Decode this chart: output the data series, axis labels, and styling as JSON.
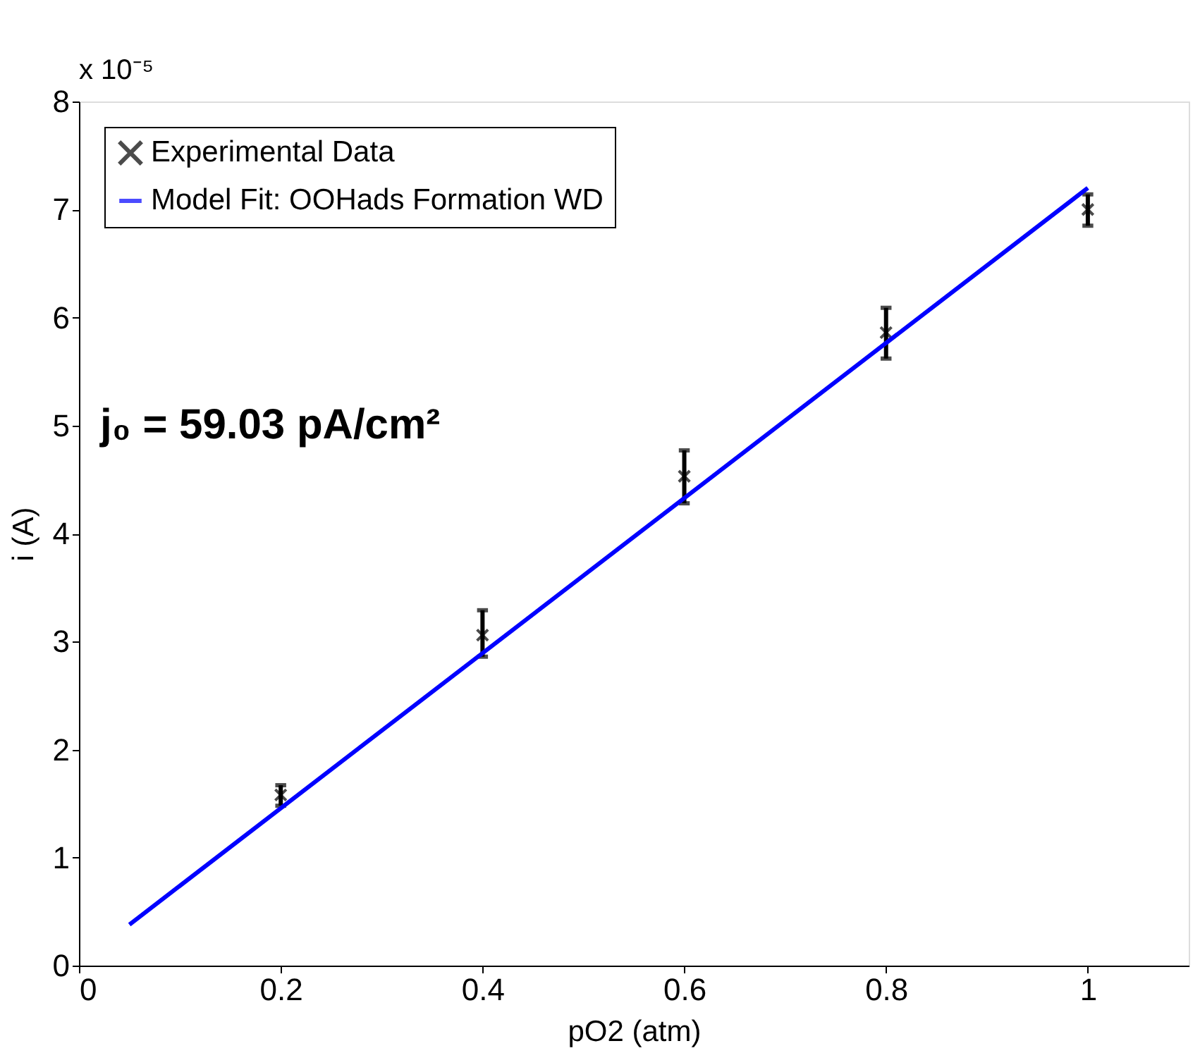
{
  "chart_data": {
    "type": "scatter",
    "xlabel": "pO2 (atm)",
    "ylabel": "i (A)",
    "series": [
      {
        "name": "Experimental Data",
        "type": "scatter",
        "color": "#000000",
        "marker": "cross",
        "x": [
          0.2,
          0.4,
          0.6,
          0.8,
          1.0
        ],
        "values": [
          1.58,
          3.06,
          4.53,
          5.86,
          7.0
        ],
        "errors": [
          [
            1.48,
            1.67
          ],
          [
            2.86,
            3.29
          ],
          [
            4.28,
            4.77
          ],
          [
            5.62,
            6.09
          ],
          [
            6.85,
            7.14
          ]
        ]
      },
      {
        "name": "Model Fit: OOHads Formation WD",
        "type": "line",
        "color": "#0000ff",
        "marker": "none",
        "line_style": "solid",
        "x": [
          0.05,
          1.0
        ],
        "values": [
          0.38,
          7.2
        ]
      }
    ],
    "annotations": [
      "x 10⁻⁵",
      "j₀ = 59.03 pA/cm²"
    ],
    "xlim": [
      0,
      1.1
    ],
    "xticks": [
      0,
      0.2,
      0.4,
      0.6,
      0.8,
      1
    ],
    "ylim": [
      0,
      8
    ],
    "yticks": [
      0,
      1,
      2,
      3,
      4,
      5,
      6,
      7,
      8
    ],
    "grid": false,
    "legend": "top left"
  }
}
